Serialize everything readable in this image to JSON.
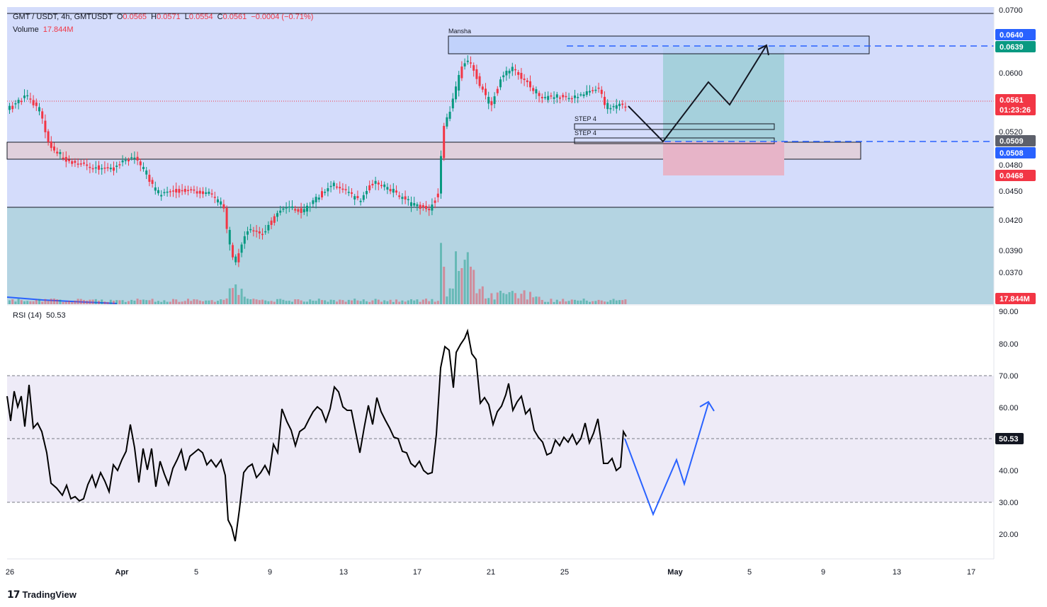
{
  "header": {
    "symbol": "GMT / USDT, 4h, GMTUSDT",
    "open_label": "O",
    "open": "0.0565",
    "high_label": "H",
    "high": "0.0571",
    "low_label": "L",
    "low": "0.0554",
    "close_label": "C",
    "close": "0.0561",
    "change": "−0.0004 (−0.71%)",
    "volume_label": "Volume",
    "volume": "17.844M"
  },
  "rsi": {
    "label": "RSI (14)",
    "value": "50.53"
  },
  "price_axis": {
    "ticks": [
      "0.0700",
      "0.0600",
      "0.0520",
      "0.0480",
      "0.0450",
      "0.0420",
      "0.0390",
      "0.0370"
    ],
    "tags": [
      {
        "text": "0.0640",
        "color": "#2962ff"
      },
      {
        "text": "0.0639",
        "color": "#089981"
      },
      {
        "text": "0.0561",
        "color": "#f23645",
        "sub": "01:23:26"
      },
      {
        "text": "0.0509",
        "color": "#5d606b"
      },
      {
        "text": "0.0508",
        "color": "#2962ff"
      },
      {
        "text": "0.0468",
        "color": "#f23645"
      },
      {
        "text": "17.844M",
        "color": "#f23645"
      }
    ]
  },
  "rsi_axis": {
    "ticks": [
      "90.00",
      "80.00",
      "70.00",
      "60.00",
      "40.00",
      "30.00",
      "20.00"
    ],
    "current_tag": "50.53"
  },
  "time_axis": [
    "26",
    "Apr",
    "5",
    "9",
    "13",
    "17",
    "21",
    "25",
    "May",
    "5",
    "9",
    "13",
    "17"
  ],
  "annotations": {
    "zone_label": "Mansha",
    "step_a": "STEP 4",
    "step_b": "STEP 4"
  },
  "colors": {
    "up": "#089981",
    "down": "#f23645",
    "bg_zone": "#d4dcfb",
    "lower_zone": "#b4d4e2",
    "long_profit": "#a5d0dc",
    "long_loss": "#e7b4c8"
  },
  "watermark": {
    "text": "TradingView"
  }
}
